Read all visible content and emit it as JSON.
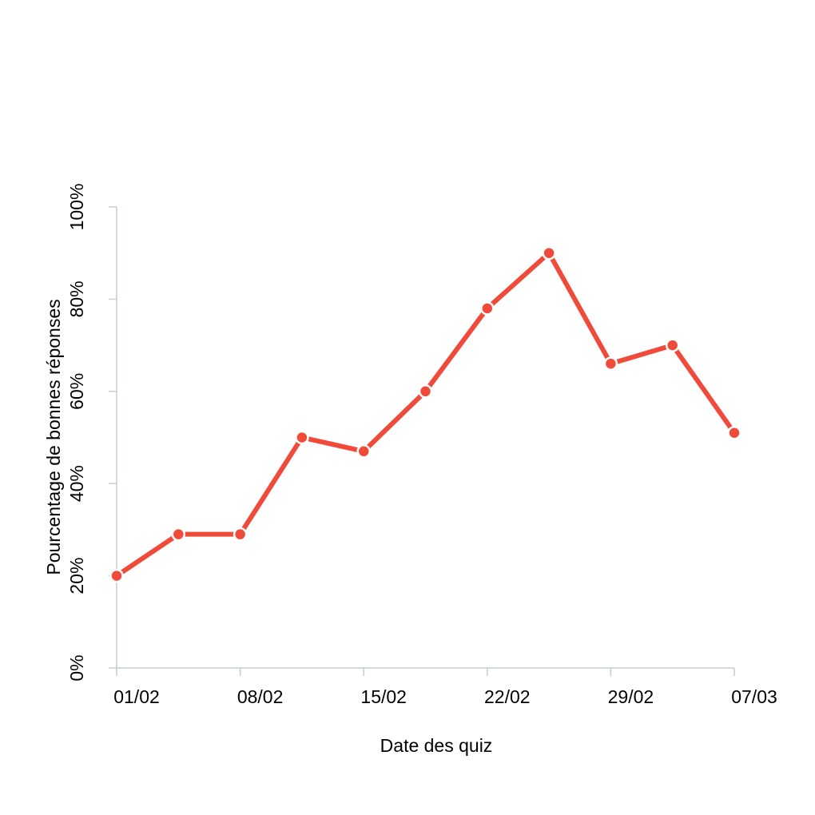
{
  "chart_data": {
    "type": "line",
    "xlabel": "Date des quiz",
    "ylabel": "Pourcentage de bonnes réponses",
    "x_tick_labels": [
      "01/02",
      "08/02",
      "15/02",
      "22/02",
      "29/02",
      "07/03"
    ],
    "x_ticks_days": [
      0,
      7,
      14,
      21,
      28,
      35
    ],
    "xlim_days": [
      0,
      35
    ],
    "y_tick_labels": [
      "0%",
      "20%",
      "40%",
      "60%",
      "80%",
      "100%"
    ],
    "y_ticks": [
      0,
      20,
      40,
      60,
      80,
      100
    ],
    "ylim": [
      0,
      100
    ],
    "grid": false,
    "series": [
      {
        "x_days": [
          0,
          3.5,
          7,
          10.5,
          14,
          17.5,
          21,
          24.5,
          28,
          31.5,
          35
        ],
        "values": [
          20,
          29,
          29,
          50,
          47,
          60,
          78,
          90,
          66,
          70,
          51
        ]
      }
    ],
    "colors": {
      "line": "#f04a3a",
      "axis": "#c3ced3"
    }
  }
}
